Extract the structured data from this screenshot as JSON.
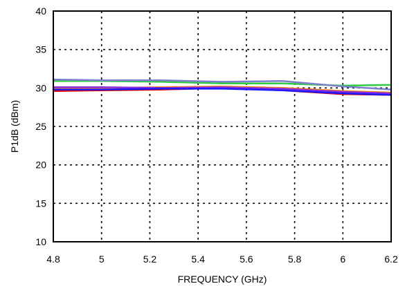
{
  "chart_data": {
    "type": "line",
    "title": "",
    "xlabel": "FREQUENCY (GHz)",
    "ylabel": "P1dB  (dBm)",
    "xlim": [
      4.8,
      6.2
    ],
    "ylim": [
      10,
      40
    ],
    "xticks": [
      "4.8",
      "5",
      "5.2",
      "5.4",
      "5.6",
      "5.8",
      "6",
      "6.2"
    ],
    "yticks": [
      "10",
      "15",
      "20",
      "25",
      "30",
      "35",
      "40"
    ],
    "xtick_values": [
      4.8,
      5.0,
      5.2,
      5.4,
      5.6,
      5.8,
      6.0,
      6.2
    ],
    "ytick_values": [
      10,
      15,
      20,
      25,
      30,
      35,
      40
    ],
    "grid": true,
    "legend": "none",
    "x": [
      4.8,
      5.0,
      5.25,
      5.5,
      5.75,
      6.0,
      6.2
    ],
    "series": [
      {
        "color": "#2ecc40",
        "values": [
          30.9,
          30.9,
          30.8,
          30.6,
          30.6,
          30.3,
          30.4
        ]
      },
      {
        "color": "#7f7fd0",
        "values": [
          31.1,
          31.0,
          31.0,
          30.8,
          30.9,
          30.2,
          29.8
        ]
      },
      {
        "color": "#ff8c00",
        "values": [
          29.9,
          30.0,
          30.1,
          30.2,
          30.0,
          29.6,
          29.4
        ]
      },
      {
        "color": "#dd0000",
        "values": [
          29.6,
          29.7,
          29.8,
          30.0,
          29.7,
          29.2,
          29.1
        ]
      },
      {
        "color": "#8a2be2",
        "values": [
          30.1,
          30.1,
          30.0,
          30.1,
          29.9,
          29.5,
          29.3
        ]
      },
      {
        "color": "#1a1aff",
        "values": [
          29.8,
          29.8,
          29.9,
          29.9,
          29.7,
          29.3,
          29.1
        ]
      }
    ]
  }
}
